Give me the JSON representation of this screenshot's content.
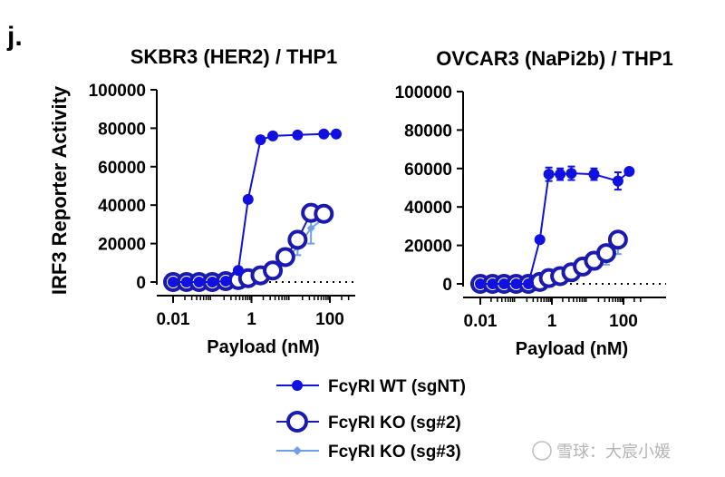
{
  "panel_label": "j.",
  "shared_ylabel": "IRF3 Reporter Activity",
  "watermark": "雪球：大宸小媛",
  "legend": [
    {
      "label": "FcγRI WT (sgNT)",
      "color": "#1010e0",
      "marker": "filled-circle"
    },
    {
      "label": "FcγRI KO (sg#2)",
      "color": "#1a1ab0",
      "marker": "open-circle"
    },
    {
      "label": "FcγRI KO (sg#3)",
      "color": "#6f9fe6",
      "marker": "diamond"
    }
  ],
  "chart_data": [
    {
      "type": "line",
      "title": "SKBR3 (HER2) / THP1",
      "xlabel": "Payload (nM)",
      "ylabel": "IRF3 Reporter Activity",
      "xscale": "log",
      "xlim": [
        0.006,
        300
      ],
      "ylim": [
        0,
        100000
      ],
      "xticks": [
        0.01,
        1,
        100
      ],
      "xtick_labels": [
        "0.01",
        "1",
        "100"
      ],
      "yticks": [
        0,
        20000,
        40000,
        60000,
        80000,
        100000
      ],
      "ytick_labels": [
        "0",
        "20000",
        "40000",
        "60000",
        "80000",
        "100000"
      ],
      "baseline_dotted": 0,
      "x": [
        0.01,
        0.022,
        0.046,
        0.1,
        0.22,
        0.46,
        0.82,
        1.7,
        3.5,
        7.3,
        15,
        33,
        70,
        145
      ],
      "series": [
        {
          "name": "FcγRI WT (sgNT)",
          "values": [
            0,
            0,
            0,
            0,
            500,
            6000,
            43000,
            74000,
            76000,
            null,
            76500,
            null,
            77000,
            77000
          ],
          "errors": [
            0,
            0,
            0,
            0,
            0,
            0,
            0,
            0,
            0,
            0,
            0,
            0,
            0,
            0
          ]
        },
        {
          "name": "FcγRI KO (sg#2)",
          "values": [
            0,
            0,
            0,
            0,
            500,
            1000,
            2000,
            3500,
            6000,
            13000,
            22000,
            36000,
            35500,
            null
          ],
          "errors": [
            0,
            0,
            0,
            0,
            0,
            0,
            0,
            0,
            0,
            0,
            2000,
            3000,
            0,
            0
          ]
        },
        {
          "name": "FcγRI KO (sg#3)",
          "values": [
            0,
            0,
            0,
            0,
            300,
            800,
            1500,
            3000,
            6000,
            12000,
            18000,
            28000,
            33000,
            null
          ],
          "errors": [
            0,
            0,
            0,
            0,
            0,
            0,
            0,
            0,
            0,
            0,
            4000,
            8000,
            0,
            0
          ]
        }
      ]
    },
    {
      "type": "line",
      "title": "OVCAR3 (NaPi2b) / THP1",
      "xlabel": "Payload (nM)",
      "ylabel": "IRF3 Reporter Activity",
      "xscale": "log",
      "xlim": [
        0.006,
        300
      ],
      "ylim": [
        0,
        100000
      ],
      "xticks": [
        0.01,
        1,
        100
      ],
      "xtick_labels": [
        "0.01",
        "1",
        "100"
      ],
      "yticks": [
        0,
        20000,
        40000,
        60000,
        80000,
        100000
      ],
      "ytick_labels": [
        "0",
        "20000",
        "40000",
        "60000",
        "80000",
        "100000"
      ],
      "baseline_dotted": 0,
      "x": [
        0.01,
        0.022,
        0.046,
        0.1,
        0.22,
        0.46,
        0.82,
        1.7,
        3.5,
        7.3,
        15,
        33,
        70,
        145
      ],
      "series": [
        {
          "name": "FcγRI WT (sgNT)",
          "values": [
            0,
            0,
            0,
            0,
            0,
            23000,
            57000,
            57000,
            57500,
            null,
            57000,
            null,
            53500,
            58500
          ],
          "errors": [
            0,
            0,
            0,
            0,
            0,
            0,
            3500,
            3000,
            3500,
            0,
            3000,
            0,
            4500,
            0
          ]
        },
        {
          "name": "FcγRI KO (sg#2)",
          "values": [
            0,
            0,
            0,
            0,
            0,
            1000,
            3000,
            4000,
            6000,
            9000,
            12000,
            16000,
            23000,
            null
          ],
          "errors": [
            0,
            0,
            0,
            0,
            0,
            0,
            0,
            0,
            1000,
            0,
            2000,
            3000,
            4000,
            0
          ]
        },
        {
          "name": "FcγRI KO (sg#3)",
          "values": [
            0,
            0,
            0,
            0,
            0,
            800,
            2500,
            3500,
            5500,
            8500,
            11500,
            15000,
            20000,
            null
          ],
          "errors": [
            0,
            0,
            0,
            0,
            0,
            0,
            0,
            0,
            0,
            0,
            0,
            5000,
            4500,
            0
          ]
        }
      ]
    }
  ]
}
